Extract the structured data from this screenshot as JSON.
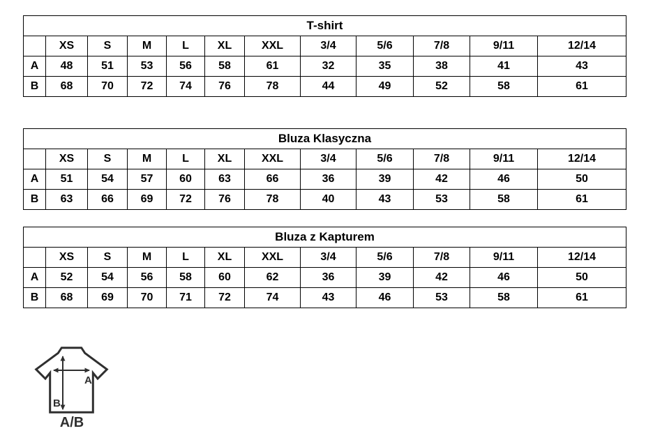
{
  "tables": [
    {
      "title": "T-shirt",
      "sizes": [
        "XS",
        "S",
        "M",
        "L",
        "XL",
        "XXL",
        "3/4",
        "5/6",
        "7/8",
        "9/11",
        "12/14"
      ],
      "rows": [
        {
          "label": "A",
          "values": [
            "48",
            "51",
            "53",
            "56",
            "58",
            "61",
            "32",
            "35",
            "38",
            "41",
            "43"
          ]
        },
        {
          "label": "B",
          "values": [
            "68",
            "70",
            "72",
            "74",
            "76",
            "78",
            "44",
            "49",
            "52",
            "58",
            "61"
          ]
        }
      ]
    },
    {
      "title": "Bluza Klasyczna",
      "sizes": [
        "XS",
        "S",
        "M",
        "L",
        "XL",
        "XXL",
        "3/4",
        "5/6",
        "7/8",
        "9/11",
        "12/14"
      ],
      "rows": [
        {
          "label": "A",
          "values": [
            "51",
            "54",
            "57",
            "60",
            "63",
            "66",
            "36",
            "39",
            "42",
            "46",
            "50"
          ]
        },
        {
          "label": "B",
          "values": [
            "63",
            "66",
            "69",
            "72",
            "76",
            "78",
            "40",
            "43",
            "53",
            "58",
            "61"
          ]
        }
      ]
    },
    {
      "title": "Bluza z Kapturem",
      "sizes": [
        "XS",
        "S",
        "M",
        "L",
        "XL",
        "XXL",
        "3/4",
        "5/6",
        "7/8",
        "9/11",
        "12/14"
      ],
      "rows": [
        {
          "label": "A",
          "values": [
            "52",
            "54",
            "56",
            "58",
            "60",
            "62",
            "36",
            "39",
            "42",
            "46",
            "50"
          ]
        },
        {
          "label": "B",
          "values": [
            "68",
            "69",
            "70",
            "71",
            "72",
            "74",
            "43",
            "46",
            "53",
            "58",
            "61"
          ]
        }
      ]
    }
  ],
  "diagram": {
    "width_label": "A",
    "length_label": "B",
    "caption": "A/B",
    "line_color": "#2f2f2f"
  }
}
